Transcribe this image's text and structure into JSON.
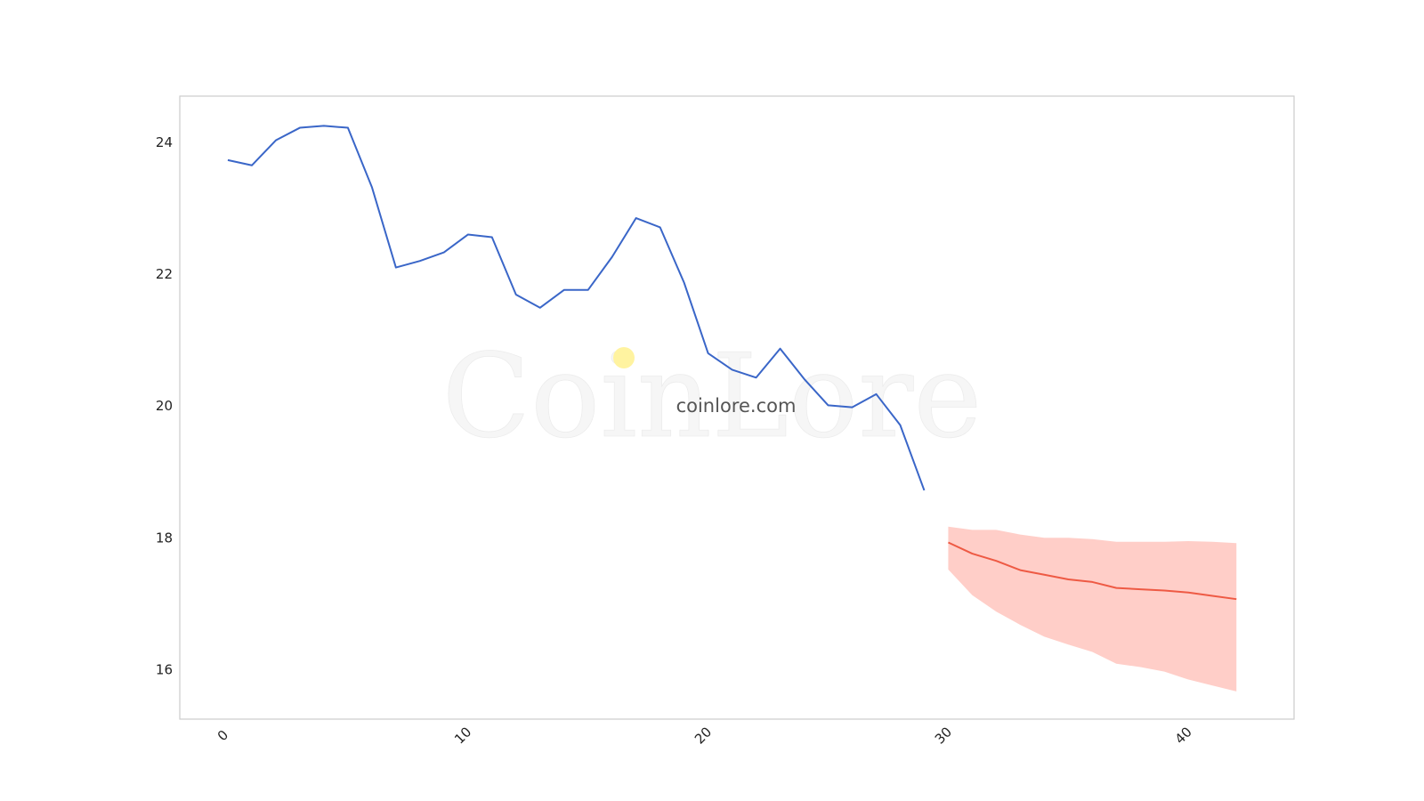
{
  "watermark": {
    "logo_text": "CoinLore",
    "site_text": "coinlore.com"
  },
  "colors": {
    "history_line": "#3a66c8",
    "forecast_line": "#ee5a44",
    "forecast_band": "#ffb3aa",
    "frame": "#cccccc",
    "dot": "#fff3a0"
  },
  "chart_data": {
    "type": "line",
    "title": "",
    "xlabel": "",
    "ylabel": "",
    "xlim": [
      -2,
      44.4
    ],
    "ylim": [
      15.25,
      24.7
    ],
    "xticks": [
      0,
      10,
      20,
      30,
      40
    ],
    "yticks": [
      16,
      18,
      20,
      22,
      24
    ],
    "grid": false,
    "series": [
      {
        "x": [
          0,
          1,
          2,
          3,
          4,
          5,
          6,
          7,
          8,
          9,
          10,
          11,
          12,
          13,
          14,
          15,
          16,
          17,
          18,
          19,
          20,
          21,
          22,
          23,
          24,
          25,
          26,
          27,
          28,
          29
        ],
        "values": [
          23.73,
          23.65,
          24.03,
          24.22,
          24.25,
          24.22,
          23.32,
          22.1,
          22.2,
          22.33,
          22.6,
          22.56,
          21.69,
          21.49,
          21.76,
          21.76,
          22.26,
          22.85,
          22.71,
          21.87,
          20.8,
          20.55,
          20.43,
          20.87,
          20.41,
          20.01,
          19.98,
          20.18,
          19.71,
          18.72
        ]
      },
      {
        "x": [
          30,
          31,
          32,
          33,
          34,
          35,
          36,
          37,
          38,
          39,
          40,
          41,
          42
        ],
        "values": [
          17.93,
          17.76,
          17.65,
          17.51,
          17.44,
          17.37,
          17.33,
          17.24,
          17.22,
          17.2,
          17.17,
          17.12,
          17.07
        ],
        "upper": [
          18.17,
          18.12,
          18.12,
          18.05,
          18.0,
          18.0,
          17.98,
          17.94,
          17.94,
          17.94,
          17.95,
          17.94,
          17.92
        ],
        "lower": [
          17.52,
          17.13,
          16.88,
          16.68,
          16.5,
          16.38,
          16.27,
          16.09,
          16.04,
          15.97,
          15.85,
          15.76,
          15.67
        ]
      }
    ]
  }
}
